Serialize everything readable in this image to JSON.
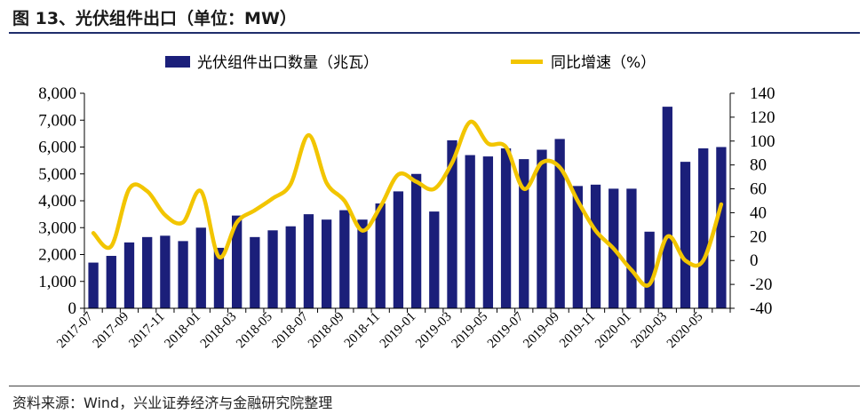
{
  "header": {
    "title": "图 13、光伏组件出口（单位：MW）"
  },
  "footer": {
    "source": "资料来源：Wind，兴业证券经济与金融研究院整理"
  },
  "chart_data": {
    "type": "bar",
    "colors": {
      "bar": "#1b1f7a",
      "line": "#f2c500"
    },
    "legend": {
      "placement": "top",
      "entries": [
        "光伏组件出口数量（兆瓦）",
        "同比增速（%）"
      ]
    },
    "categories": [
      "2017-07",
      "2017-08",
      "2017-09",
      "2017-10",
      "2017-11",
      "2017-12",
      "2018-01",
      "2018-02",
      "2018-03",
      "2018-04",
      "2018-05",
      "2018-06",
      "2018-07",
      "2018-08",
      "2018-09",
      "2018-10",
      "2018-11",
      "2018-12",
      "2019-01",
      "2019-02",
      "2019-03",
      "2019-04",
      "2019-05",
      "2019-06",
      "2019-07",
      "2019-08",
      "2019-09",
      "2019-10",
      "2019-11",
      "2019-12",
      "2020-01",
      "2020-02",
      "2020-03",
      "2020-04",
      "2020-05",
      "2020-06"
    ],
    "x_tick_labels": [
      "2017-07",
      "2017-09",
      "2017-11",
      "2018-01",
      "2018-03",
      "2018-05",
      "2018-07",
      "2018-09",
      "2018-11",
      "2019-01",
      "2019-03",
      "2019-05",
      "2019-07",
      "2019-09",
      "2019-11",
      "2020-01",
      "2020-03",
      "2020-05"
    ],
    "series": [
      {
        "name": "光伏组件出口数量（兆瓦）",
        "type": "bar",
        "axis": "left",
        "values": [
          1700,
          1950,
          2450,
          2650,
          2700,
          2500,
          3000,
          2250,
          3450,
          2650,
          2900,
          3050,
          3500,
          3300,
          3650,
          3300,
          3900,
          4350,
          5000,
          3600,
          6250,
          5700,
          5650,
          5950,
          5550,
          5900,
          6300,
          4550,
          4600,
          4450,
          4450,
          2850,
          7500,
          5450,
          5950,
          6000
        ]
      },
      {
        "name": "同比增速（%）",
        "type": "line",
        "axis": "right",
        "values": [
          23,
          12,
          60,
          58,
          38,
          32,
          58,
          3,
          32,
          42,
          52,
          64,
          105,
          65,
          50,
          25,
          45,
          72,
          66,
          60,
          82,
          116,
          98,
          95,
          60,
          82,
          78,
          50,
          25,
          10,
          -8,
          -20,
          20,
          0,
          0,
          47
        ]
      }
    ],
    "y_left": {
      "min": 0,
      "max": 8000,
      "ticks": [
        "0",
        "1,000",
        "2,000",
        "3,000",
        "4,000",
        "5,000",
        "6,000",
        "7,000",
        "8,000"
      ]
    },
    "y_right": {
      "min": -40,
      "max": 140,
      "ticks": [
        "-40",
        "-20",
        "0",
        "20",
        "40",
        "60",
        "80",
        "100",
        "120",
        "140"
      ]
    },
    "grid": false
  }
}
